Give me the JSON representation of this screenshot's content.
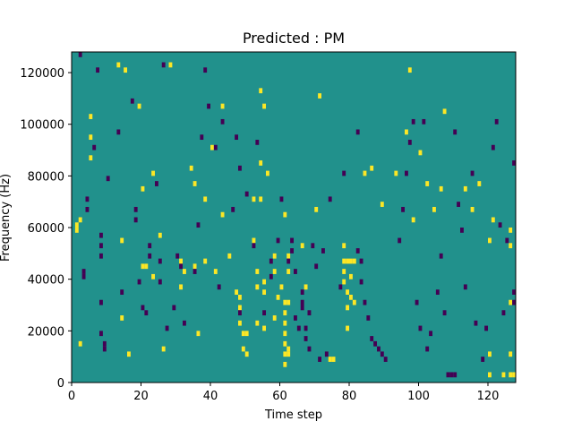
{
  "chart_data": {
    "type": "heatmap",
    "title": "Predicted : PM",
    "xlabel": "Time step",
    "ylabel": "Frequency (Hz)",
    "xlim": [
      0,
      128
    ],
    "ylim": [
      0,
      128000
    ],
    "xticks": [
      0,
      20,
      40,
      60,
      80,
      100,
      120
    ],
    "yticks": [
      0,
      20000,
      40000,
      60000,
      80000,
      100000,
      120000
    ],
    "grid": false,
    "colors": {
      "background": "#21918c",
      "high": "#fde725",
      "low": "#440154"
    },
    "legend": "none",
    "freq_bin_hz": 2000,
    "high_cells": [
      [
        1,
        60000
      ],
      [
        1,
        58000
      ],
      [
        2,
        62000
      ],
      [
        2,
        14000
      ],
      [
        5,
        102000
      ],
      [
        5,
        94000
      ],
      [
        5,
        86000
      ],
      [
        13,
        122000
      ],
      [
        14,
        54000
      ],
      [
        14,
        24000
      ],
      [
        15,
        120000
      ],
      [
        16,
        10000
      ],
      [
        19,
        106000
      ],
      [
        20,
        74000
      ],
      [
        20,
        44000
      ],
      [
        21,
        44000
      ],
      [
        23,
        80000
      ],
      [
        23,
        40000
      ],
      [
        25,
        56000
      ],
      [
        26,
        12000
      ],
      [
        28,
        122000
      ],
      [
        31,
        46000
      ],
      [
        31,
        36000
      ],
      [
        32,
        42000
      ],
      [
        34,
        82000
      ],
      [
        35,
        76000
      ],
      [
        35,
        44000
      ],
      [
        36,
        18000
      ],
      [
        38,
        70000
      ],
      [
        38,
        46000
      ],
      [
        40,
        90000
      ],
      [
        41,
        42000
      ],
      [
        43,
        64000
      ],
      [
        43,
        106000
      ],
      [
        45,
        48000
      ],
      [
        47,
        34000
      ],
      [
        48,
        32000
      ],
      [
        48,
        28000
      ],
      [
        48,
        22000
      ],
      [
        49,
        18000
      ],
      [
        49,
        12000
      ],
      [
        50,
        18000
      ],
      [
        50,
        10000
      ],
      [
        52,
        70000
      ],
      [
        52,
        54000
      ],
      [
        53,
        42000
      ],
      [
        53,
        36000
      ],
      [
        53,
        22000
      ],
      [
        54,
        112000
      ],
      [
        54,
        84000
      ],
      [
        54,
        70000
      ],
      [
        55,
        38000
      ],
      [
        55,
        34000
      ],
      [
        55,
        20000
      ],
      [
        55,
        106000
      ],
      [
        56,
        80000
      ],
      [
        58,
        48000
      ],
      [
        58,
        42000
      ],
      [
        58,
        24000
      ],
      [
        59,
        32000
      ],
      [
        60,
        36000
      ],
      [
        61,
        64000
      ],
      [
        61,
        30000
      ],
      [
        61,
        26000
      ],
      [
        61,
        22000
      ],
      [
        61,
        18000
      ],
      [
        61,
        14000
      ],
      [
        61,
        10000
      ],
      [
        61,
        6000
      ],
      [
        62,
        48000
      ],
      [
        62,
        42000
      ],
      [
        62,
        30000
      ],
      [
        62,
        12000
      ],
      [
        62,
        10000
      ],
      [
        66,
        52000
      ],
      [
        67,
        36000
      ],
      [
        70,
        66000
      ],
      [
        71,
        110000
      ],
      [
        74,
        8000
      ],
      [
        75,
        8000
      ],
      [
        78,
        52000
      ],
      [
        78,
        46000
      ],
      [
        78,
        42000
      ],
      [
        78,
        38000
      ],
      [
        79,
        46000
      ],
      [
        79,
        34000
      ],
      [
        79,
        28000
      ],
      [
        79,
        20000
      ],
      [
        80,
        46000
      ],
      [
        80,
        40000
      ],
      [
        80,
        32000
      ],
      [
        81,
        46000
      ],
      [
        81,
        30000
      ],
      [
        84,
        80000
      ],
      [
        86,
        82000
      ],
      [
        89,
        68000
      ],
      [
        93,
        80000
      ],
      [
        96,
        96000
      ],
      [
        97,
        120000
      ],
      [
        98,
        62000
      ],
      [
        100,
        88000
      ],
      [
        102,
        76000
      ],
      [
        104,
        66000
      ],
      [
        106,
        74000
      ],
      [
        107,
        104000
      ],
      [
        113,
        74000
      ],
      [
        115,
        66000
      ],
      [
        117,
        76000
      ],
      [
        120,
        54000
      ],
      [
        120,
        10000
      ],
      [
        120,
        2000
      ],
      [
        121,
        62000
      ],
      [
        124,
        2000
      ],
      [
        126,
        58000
      ],
      [
        126,
        52000
      ],
      [
        126,
        30000
      ],
      [
        126,
        10000
      ],
      [
        126,
        2000
      ],
      [
        127,
        2000
      ]
    ],
    "low_cells": [
      [
        2,
        126000
      ],
      [
        3,
        42000
      ],
      [
        3,
        40000
      ],
      [
        4,
        70000
      ],
      [
        4,
        66000
      ],
      [
        6,
        90000
      ],
      [
        7,
        120000
      ],
      [
        8,
        56000
      ],
      [
        8,
        52000
      ],
      [
        8,
        48000
      ],
      [
        8,
        30000
      ],
      [
        8,
        18000
      ],
      [
        9,
        14000
      ],
      [
        9,
        12000
      ],
      [
        10,
        78000
      ],
      [
        13,
        96000
      ],
      [
        14,
        34000
      ],
      [
        17,
        108000
      ],
      [
        18,
        66000
      ],
      [
        18,
        62000
      ],
      [
        19,
        38000
      ],
      [
        20,
        28000
      ],
      [
        21,
        26000
      ],
      [
        22,
        52000
      ],
      [
        22,
        48000
      ],
      [
        24,
        76000
      ],
      [
        25,
        46000
      ],
      [
        25,
        38000
      ],
      [
        26,
        122000
      ],
      [
        27,
        20000
      ],
      [
        29,
        28000
      ],
      [
        30,
        48000
      ],
      [
        31,
        44000
      ],
      [
        32,
        22000
      ],
      [
        35,
        42000
      ],
      [
        36,
        60000
      ],
      [
        37,
        94000
      ],
      [
        38,
        120000
      ],
      [
        39,
        106000
      ],
      [
        41,
        90000
      ],
      [
        42,
        36000
      ],
      [
        43,
        100000
      ],
      [
        46,
        66000
      ],
      [
        47,
        94000
      ],
      [
        48,
        82000
      ],
      [
        48,
        26000
      ],
      [
        50,
        72000
      ],
      [
        52,
        52000
      ],
      [
        53,
        92000
      ],
      [
        55,
        26000
      ],
      [
        57,
        46000
      ],
      [
        57,
        40000
      ],
      [
        59,
        54000
      ],
      [
        60,
        70000
      ],
      [
        62,
        46000
      ],
      [
        63,
        54000
      ],
      [
        63,
        50000
      ],
      [
        64,
        42000
      ],
      [
        64,
        24000
      ],
      [
        65,
        20000
      ],
      [
        66,
        34000
      ],
      [
        66,
        30000
      ],
      [
        66,
        28000
      ],
      [
        67,
        20000
      ],
      [
        67,
        16000
      ],
      [
        68,
        26000
      ],
      [
        68,
        12000
      ],
      [
        69,
        52000
      ],
      [
        70,
        44000
      ],
      [
        71,
        8000
      ],
      [
        72,
        50000
      ],
      [
        73,
        10000
      ],
      [
        74,
        70000
      ],
      [
        77,
        36000
      ],
      [
        78,
        80000
      ],
      [
        82,
        96000
      ],
      [
        82,
        50000
      ],
      [
        83,
        46000
      ],
      [
        83,
        38000
      ],
      [
        84,
        30000
      ],
      [
        85,
        24000
      ],
      [
        86,
        16000
      ],
      [
        87,
        14000
      ],
      [
        88,
        12000
      ],
      [
        89,
        10000
      ],
      [
        90,
        8000
      ],
      [
        94,
        54000
      ],
      [
        95,
        66000
      ],
      [
        96,
        80000
      ],
      [
        97,
        92000
      ],
      [
        98,
        100000
      ],
      [
        99,
        30000
      ],
      [
        100,
        20000
      ],
      [
        101,
        100000
      ],
      [
        102,
        12000
      ],
      [
        103,
        18000
      ],
      [
        105,
        34000
      ],
      [
        106,
        48000
      ],
      [
        107,
        26000
      ],
      [
        108,
        2000
      ],
      [
        109,
        2000
      ],
      [
        110,
        2000
      ],
      [
        110,
        96000
      ],
      [
        111,
        68000
      ],
      [
        112,
        58000
      ],
      [
        113,
        36000
      ],
      [
        115,
        80000
      ],
      [
        116,
        22000
      ],
      [
        118,
        8000
      ],
      [
        119,
        20000
      ],
      [
        121,
        90000
      ],
      [
        122,
        100000
      ],
      [
        123,
        60000
      ],
      [
        124,
        26000
      ],
      [
        125,
        54000
      ],
      [
        127,
        34000
      ],
      [
        127,
        30000
      ],
      [
        127,
        84000
      ]
    ]
  }
}
